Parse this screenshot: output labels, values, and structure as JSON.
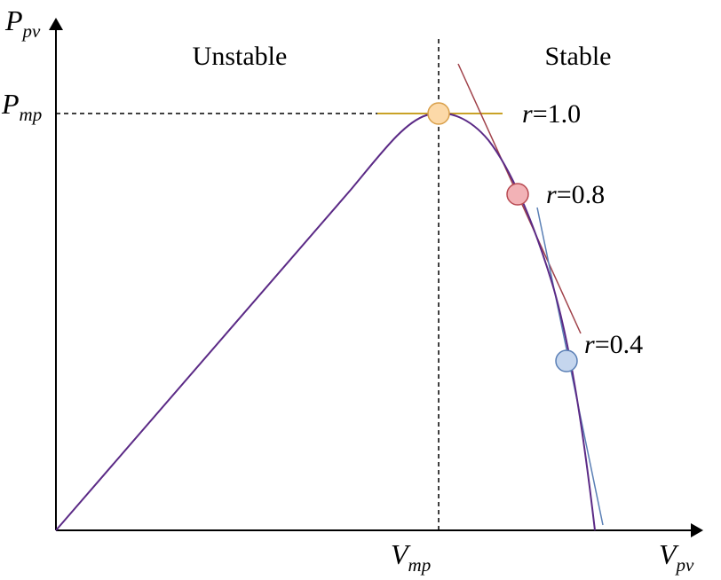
{
  "axes": {
    "y_label": {
      "main": "P",
      "sub": "pv"
    },
    "x_label": {
      "main": "V",
      "sub": "pv"
    },
    "y_tick": {
      "main": "P",
      "sub": "mp"
    },
    "x_tick": {
      "main": "V",
      "sub": "mp"
    }
  },
  "regions": {
    "left": "Unstable",
    "right": "Stable"
  },
  "points": [
    {
      "r_symbol": "r",
      "value": "=1.0",
      "fill": "#fcd9a8",
      "stroke": "#d9a04a",
      "tangent_color": "#c9a227"
    },
    {
      "r_symbol": "r",
      "value": "=0.8",
      "fill": "#f2b2b6",
      "stroke": "#b84a52",
      "tangent_color": "#a0424a"
    },
    {
      "r_symbol": "r",
      "value": "=0.4",
      "fill": "#c5d6ee",
      "stroke": "#5a7fb5",
      "tangent_color": "#5a7fb5"
    }
  ],
  "colors": {
    "curve": "#5b2a86",
    "axis": "#000000",
    "dashed": "#000000"
  }
}
